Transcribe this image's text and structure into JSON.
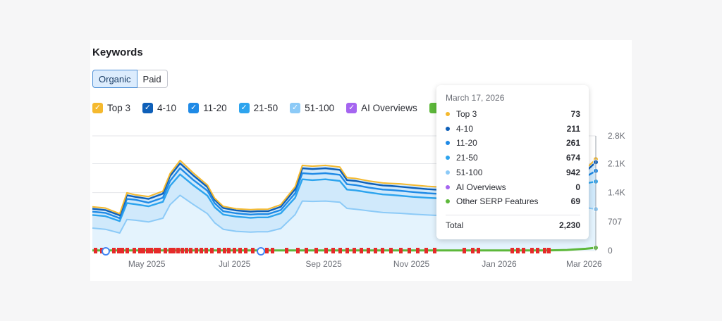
{
  "header": {
    "title": "Keywords"
  },
  "tabs": [
    {
      "label": "Organic",
      "active": true
    },
    {
      "label": "Paid",
      "active": false
    }
  ],
  "legend": [
    {
      "label": "Top 3",
      "color": "#f5b92e"
    },
    {
      "label": "4-10",
      "color": "#0e5fb8"
    },
    {
      "label": "11-20",
      "color": "#1f8ae6"
    },
    {
      "label": "21-50",
      "color": "#2da4ee"
    },
    {
      "label": "51-100",
      "color": "#8ccaf7"
    },
    {
      "label": "AI Overviews",
      "color": "#a565f0"
    }
  ],
  "tooltip": {
    "date": "March 17, 2026",
    "rows": [
      {
        "label": "Top 3",
        "value": "73",
        "color": "#f5b92e"
      },
      {
        "label": "4-10",
        "value": "211",
        "color": "#0e5fb8"
      },
      {
        "label": "11-20",
        "value": "261",
        "color": "#1f8ae6"
      },
      {
        "label": "21-50",
        "value": "674",
        "color": "#2da4ee"
      },
      {
        "label": "51-100",
        "value": "942",
        "color": "#8ccaf7"
      },
      {
        "label": "AI Overviews",
        "value": "0",
        "color": "#a565f0"
      },
      {
        "label": "Other SERP Features",
        "value": "69",
        "color": "#5db83a"
      }
    ],
    "total_label": "Total",
    "total_value": "2,230"
  },
  "chart_data": {
    "type": "area",
    "x": [
      "2025-04-01",
      "2025-04-10",
      "2025-04-20",
      "2025-04-25",
      "2025-05-01",
      "2025-05-10",
      "2025-05-20",
      "2025-05-25",
      "2025-06-01",
      "2025-06-10",
      "2025-06-20",
      "2025-06-25",
      "2025-07-01",
      "2025-07-10",
      "2025-07-20",
      "2025-07-25",
      "2025-08-01",
      "2025-08-10",
      "2025-08-20",
      "2025-08-25",
      "2025-09-01",
      "2025-09-10",
      "2025-09-20",
      "2025-09-25",
      "2025-10-01",
      "2025-10-10",
      "2025-10-20",
      "2025-10-25",
      "2025-11-01",
      "2025-11-10",
      "2025-11-20",
      "2025-11-25",
      "2025-12-01",
      "2025-12-10",
      "2025-12-20",
      "2025-12-25",
      "2026-01-01",
      "2026-01-10",
      "2026-01-20",
      "2026-01-25",
      "2026-02-01",
      "2026-02-10",
      "2026-02-20",
      "2026-02-25",
      "2026-03-01",
      "2026-03-10",
      "2026-03-17"
    ],
    "series": [
      {
        "name": "Top 3",
        "color": "#f5b92e",
        "values": [
          1070,
          1040,
          900,
          1410,
          1360,
          1320,
          1450,
          1880,
          2200,
          1900,
          1600,
          1280,
          1080,
          1020,
          1000,
          1010,
          1010,
          1120,
          1560,
          2080,
          2060,
          2080,
          2040,
          1780,
          1760,
          1700,
          1650,
          1640,
          1630,
          1600,
          1570,
          1560,
          1550,
          1520,
          1490,
          1470,
          1460,
          1440,
          1440,
          1430,
          1420,
          1410,
          1430,
          1500,
          1700,
          2000,
          2230
        ]
      },
      {
        "name": "4-10",
        "color": "#0e5fb8",
        "values": [
          1020,
          990,
          860,
          1350,
          1310,
          1260,
          1390,
          1820,
          2130,
          1840,
          1550,
          1240,
          1040,
          980,
          950,
          960,
          960,
          1070,
          1500,
          2010,
          1990,
          2010,
          1970,
          1720,
          1700,
          1640,
          1590,
          1580,
          1560,
          1530,
          1500,
          1490,
          1480,
          1460,
          1430,
          1410,
          1400,
          1390,
          1380,
          1370,
          1370,
          1360,
          1380,
          1440,
          1640,
          1930,
          2157
        ]
      },
      {
        "name": "11-20",
        "color": "#1f8ae6",
        "values": [
          950,
          920,
          790,
          1260,
          1240,
          1170,
          1290,
          1700,
          2010,
          1730,
          1460,
          1160,
          960,
          910,
          880,
          890,
          890,
          990,
          1400,
          1890,
          1870,
          1890,
          1850,
          1620,
          1600,
          1540,
          1490,
          1480,
          1460,
          1430,
          1400,
          1390,
          1380,
          1360,
          1330,
          1320,
          1310,
          1300,
          1290,
          1280,
          1280,
          1270,
          1290,
          1340,
          1540,
          1800,
          1946
        ]
      },
      {
        "name": "21-50",
        "color": "#2da4ee",
        "values": [
          870,
          840,
          720,
          1160,
          1130,
          1080,
          1190,
          1580,
          1860,
          1600,
          1340,
          1060,
          880,
          830,
          800,
          810,
          810,
          910,
          1290,
          1740,
          1720,
          1740,
          1700,
          1490,
          1470,
          1420,
          1370,
          1360,
          1340,
          1310,
          1290,
          1280,
          1270,
          1250,
          1230,
          1210,
          1200,
          1190,
          1190,
          1180,
          1180,
          1170,
          1190,
          1240,
          1410,
          1640,
          1685
        ]
      },
      {
        "name": "51-100",
        "color": "#8ccaf7",
        "values": [
          550,
          520,
          430,
          760,
          740,
          700,
          790,
          1120,
          1350,
          1130,
          900,
          680,
          520,
          470,
          450,
          460,
          460,
          540,
          880,
          1210,
          1200,
          1210,
          1180,
          1030,
          1010,
          970,
          930,
          920,
          910,
          890,
          870,
          860,
          860,
          840,
          820,
          810,
          800,
          790,
          790,
          780,
          780,
          770,
          790,
          820,
          920,
          1050,
          1011
        ]
      },
      {
        "name": "Other SERP Features",
        "color": "#5db83a",
        "values": [
          5,
          5,
          5,
          5,
          5,
          5,
          5,
          5,
          5,
          5,
          5,
          5,
          5,
          5,
          5,
          5,
          5,
          5,
          5,
          5,
          5,
          5,
          5,
          5,
          5,
          5,
          5,
          5,
          5,
          5,
          5,
          5,
          5,
          5,
          5,
          5,
          5,
          5,
          5,
          5,
          5,
          5,
          10,
          15,
          25,
          45,
          69
        ]
      }
    ],
    "x_tick_labels": [
      "May 2025",
      "Jul 2025",
      "Sep 2025",
      "Nov 2025",
      "Jan 2026",
      "Mar 2026"
    ],
    "y_tick_labels": [
      "0",
      "707",
      "1.4K",
      "2.1K",
      "2.8K"
    ],
    "ylim": [
      0,
      2800
    ],
    "grid": true
  }
}
